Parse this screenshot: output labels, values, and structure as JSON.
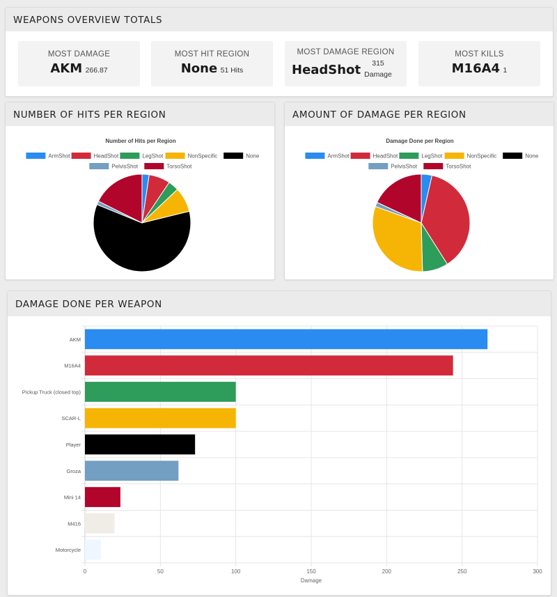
{
  "overview": {
    "title": "WEAPONS OVERVIEW TOTALS",
    "stats": [
      {
        "label": "MOST DAMAGE",
        "value": "AKM",
        "sub": "266.87"
      },
      {
        "label": "MOST HIT REGION",
        "value": "None",
        "sub": "51 Hits"
      },
      {
        "label": "MOST DAMAGE REGION",
        "value": "HeadShot",
        "sub_num": "315",
        "sub_unit": "Damage"
      },
      {
        "label": "MOST KILLS",
        "value": "M16A4",
        "sub": "1"
      }
    ]
  },
  "hits_card": {
    "title": "NUMBER OF HITS PER REGION"
  },
  "damage_card": {
    "title": "AMOUNT OF DAMAGE PER REGION"
  },
  "weapons_card": {
    "title": "DAMAGE DONE PER WEAPON"
  },
  "colors": {
    "ArmShot": "#2a8cf0",
    "HeadShot": "#d12a3a",
    "LegShot": "#2e9c5a",
    "NonSpecific": "#f6b505",
    "None": "#000000",
    "PelvisShot": "#729fc2",
    "TorsoShot": "#b1052c"
  },
  "chart_data": [
    {
      "type": "pie",
      "title": "Number of Hits per Region",
      "labels": [
        "ArmShot",
        "HeadShot",
        "LegShot",
        "NonSpecific",
        "None",
        "PelvisShot",
        "TorsoShot"
      ],
      "values": [
        2,
        6,
        3,
        7,
        51,
        1,
        15
      ]
    },
    {
      "type": "pie",
      "title": "Damage Done per Region",
      "labels": [
        "ArmShot",
        "HeadShot",
        "LegShot",
        "NonSpecific",
        "None",
        "PelvisShot",
        "TorsoShot"
      ],
      "values": [
        30,
        315,
        72,
        260,
        0,
        12,
        152
      ]
    },
    {
      "type": "bar",
      "orientation": "horizontal",
      "categories": [
        "AKM",
        "M16A4",
        "Pickup Truck (closed top)",
        "SCAR-L",
        "Player",
        "Groza",
        "Mini 14",
        "M416",
        "Motorcycle"
      ],
      "values": [
        266.87,
        244,
        100,
        100,
        73,
        62,
        23.5,
        19.5,
        10.5
      ],
      "bar_colors": [
        "#2a8cf0",
        "#d12a3a",
        "#2e9c5a",
        "#f6b505",
        "#000000",
        "#729fc2",
        "#b1052c",
        "#efede6",
        "#eef6ff"
      ],
      "xlabel": "Damage",
      "xlim": [
        0,
        300
      ],
      "xticks": [
        0,
        50,
        100,
        150,
        200,
        250,
        300
      ],
      "grid": true
    }
  ]
}
